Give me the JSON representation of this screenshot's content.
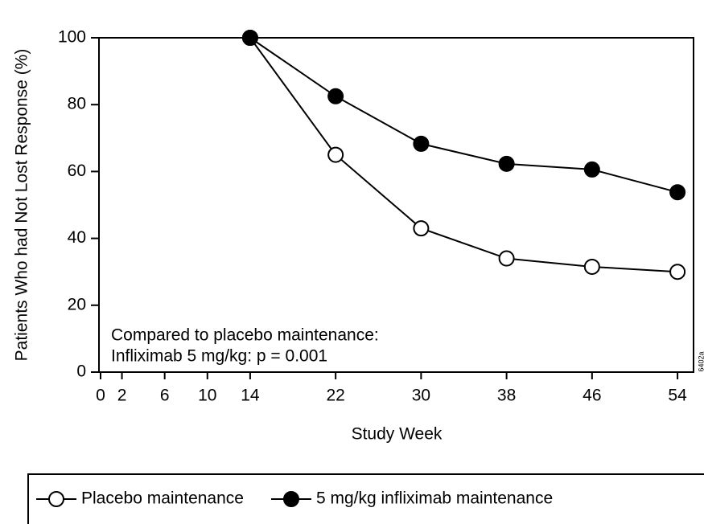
{
  "chart_data": {
    "type": "line",
    "ylabel": "Patients Who had Not Lost Response (%)",
    "xlabel": "Study Week",
    "x": [
      14,
      22,
      30,
      38,
      46,
      54
    ],
    "series": [
      {
        "name": "Placebo maintenance",
        "color": "#000000",
        "marker_fill": "#ffffff",
        "values": [
          100,
          65,
          43,
          34,
          31.5,
          30
        ]
      },
      {
        "name": "5 mg/kg infliximab maintenance",
        "color": "#000000",
        "marker_fill": "#000000",
        "values": [
          100,
          82.5,
          68.3,
          62.3,
          60.6,
          53.8
        ]
      }
    ],
    "xlim": [
      0,
      55.5
    ],
    "xticks": [
      0,
      2,
      6,
      10,
      14,
      22,
      30,
      38,
      46,
      54
    ],
    "ylim": [
      0,
      100
    ],
    "yticks": [
      0,
      20,
      40,
      60,
      80,
      100
    ],
    "annotations": [
      "Compared to placebo maintenance:",
      "Infliximab 5 mg/kg:  p = 0.001",
      "6402a"
    ],
    "legend": "bottom"
  }
}
